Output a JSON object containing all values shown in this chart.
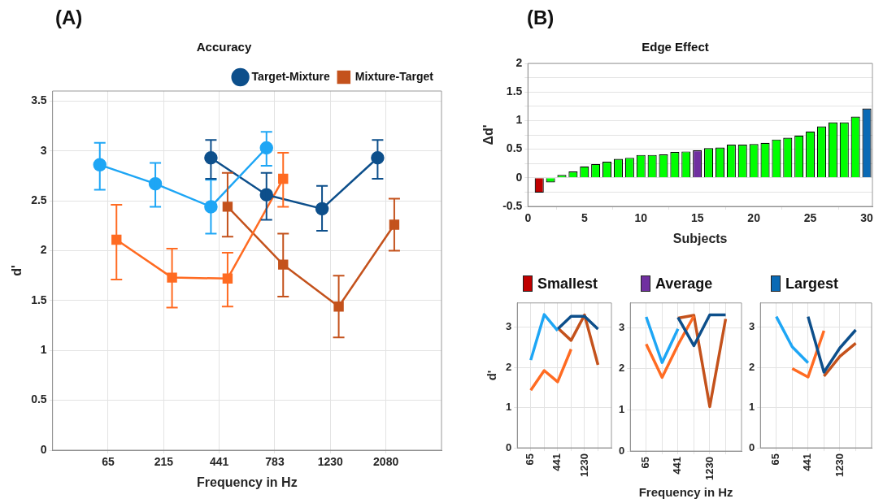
{
  "chart_data": [
    {
      "type": "line",
      "title": "Accuracy",
      "xlabel": "Frequency in Hz",
      "ylabel": "d'",
      "annotations": [
        "(A)"
      ],
      "categories": [
        "65",
        "215",
        "441",
        "783",
        "1230",
        "2080"
      ],
      "ylim": [
        0,
        3.6
      ],
      "yticks": [
        0,
        0.5,
        1,
        1.5,
        2,
        2.5,
        3,
        3.5
      ],
      "grid": true,
      "legend": "top right",
      "series": [
        {
          "color": "#1ea6f5",
          "marker": "circle",
          "values": [
            2.86,
            2.67,
            2.44,
            3.03,
            null,
            null
          ],
          "errors": [
            [
              2.61,
              3.08
            ],
            [
              2.44,
              2.88
            ],
            [
              2.17,
              2.71
            ],
            [
              2.85,
              3.19
            ],
            null,
            null
          ]
        },
        {
          "name": "Target-Mixture",
          "color": "#0d4f8b",
          "marker": "circle",
          "values": [
            null,
            null,
            2.93,
            2.56,
            2.42,
            2.93
          ],
          "errors": [
            null,
            null,
            [
              2.72,
              3.11
            ],
            [
              2.31,
              2.78
            ],
            [
              2.2,
              2.65
            ],
            [
              2.72,
              3.11
            ]
          ]
        },
        {
          "color": "#ff6b22",
          "marker": "square",
          "values": [
            2.11,
            1.73,
            1.72,
            2.72,
            null,
            null
          ],
          "errors": [
            [
              1.71,
              2.46
            ],
            [
              1.43,
              2.02
            ],
            [
              1.44,
              1.98
            ],
            [
              2.44,
              2.98
            ],
            null,
            null
          ]
        },
        {
          "name": "Mixture-Target",
          "color": "#c4521c",
          "marker": "square",
          "values": [
            null,
            null,
            2.44,
            1.86,
            1.44,
            2.26
          ],
          "errors": [
            null,
            null,
            [
              2.14,
              2.78
            ],
            [
              1.54,
              2.17
            ],
            [
              1.13,
              1.75
            ],
            [
              2.0,
              2.52
            ]
          ]
        }
      ]
    },
    {
      "type": "bar",
      "title": "Edge Effect",
      "xlabel": "Subjects",
      "ylabel": "Δd'",
      "annotations": [
        "(B)"
      ],
      "x": [
        1,
        2,
        3,
        4,
        5,
        6,
        7,
        8,
        9,
        10,
        11,
        12,
        13,
        14,
        15,
        16,
        17,
        18,
        19,
        20,
        21,
        22,
        23,
        24,
        25,
        26,
        27,
        28,
        29,
        30
      ],
      "values": [
        -0.26,
        -0.08,
        0.05,
        0.11,
        0.2,
        0.24,
        0.28,
        0.33,
        0.35,
        0.4,
        0.4,
        0.41,
        0.45,
        0.46,
        0.48,
        0.52,
        0.53,
        0.58,
        0.58,
        0.59,
        0.61,
        0.67,
        0.7,
        0.74,
        0.81,
        0.9,
        0.97,
        0.97,
        1.07,
        1.21
      ],
      "colors": [
        "#c00000",
        "#00ff00",
        "#00ff00",
        "#00ff00",
        "#00ff00",
        "#00ff00",
        "#00ff00",
        "#00ff00",
        "#00ff00",
        "#00ff00",
        "#00ff00",
        "#00ff00",
        "#00ff00",
        "#00ff00",
        "#7030a0",
        "#00ff00",
        "#00ff00",
        "#00ff00",
        "#00ff00",
        "#00ff00",
        "#00ff00",
        "#00ff00",
        "#00ff00",
        "#00ff00",
        "#00ff00",
        "#00ff00",
        "#00ff00",
        "#00ff00",
        "#00ff00",
        "#0a6ab5"
      ],
      "xlim": [
        0,
        30.5
      ],
      "xticks": [
        0,
        5,
        10,
        15,
        20,
        25,
        30
      ],
      "ylim": [
        -0.5,
        2
      ],
      "yticks": [
        -0.5,
        {
          "value": -0.25,
          "label": null
        },
        0,
        {
          "value": 0.25,
          "label": null
        },
        0.5,
        {
          "value": 0.75,
          "label": null
        },
        1,
        {
          "value": 1.25,
          "label": null
        },
        1.5,
        {
          "value": 1.75,
          "label": null
        },
        2
      ],
      "grid": "y"
    },
    {
      "type": "line",
      "title": "Smallest",
      "ylabel": "d'",
      "categories": [
        "65",
        null,
        "441",
        null,
        "1230",
        null
      ],
      "ylim": [
        0,
        3.6
      ],
      "yticks": [
        0,
        1,
        2,
        3
      ],
      "grid": true,
      "marker": "none",
      "series": [
        {
          "color": "#1ea6f5",
          "values": [
            2.18,
            3.31,
            2.91,
            null,
            null,
            null
          ]
        },
        {
          "color": "#0d4f8b",
          "values": [
            null,
            null,
            2.95,
            3.27,
            3.27,
            2.95
          ]
        },
        {
          "color": "#ff6b22",
          "values": [
            1.43,
            1.92,
            1.64,
            2.45,
            null,
            null
          ]
        },
        {
          "color": "#c4521c",
          "values": [
            null,
            null,
            2.98,
            2.67,
            3.3,
            2.06
          ]
        }
      ]
    },
    {
      "type": "line",
      "title": "Average",
      "xlabel": "Frequency in Hz",
      "categories": [
        "65",
        null,
        "441",
        null,
        "1230",
        null
      ],
      "ylim": [
        0,
        3.6
      ],
      "yticks": [
        0,
        1,
        2,
        3
      ],
      "grid": true,
      "marker": "none",
      "series": [
        {
          "color": "#1ea6f5",
          "values": [
            3.26,
            2.15,
            2.97,
            null,
            null,
            null
          ]
        },
        {
          "color": "#0d4f8b",
          "values": [
            null,
            null,
            3.25,
            2.56,
            3.31,
            3.31
          ]
        },
        {
          "color": "#ff6b22",
          "values": [
            2.6,
            1.79,
            2.58,
            3.28,
            null,
            null
          ]
        },
        {
          "color": "#c4521c",
          "values": [
            null,
            null,
            3.23,
            3.3,
            1.08,
            3.21
          ]
        }
      ]
    },
    {
      "type": "line",
      "title": "Largest",
      "categories": [
        "65",
        null,
        "441",
        null,
        "1230",
        null
      ],
      "ylim": [
        0,
        3.6
      ],
      "yticks": [
        0,
        1,
        2,
        3
      ],
      "grid": true,
      "marker": "none",
      "series": [
        {
          "color": "#1ea6f5",
          "values": [
            3.26,
            2.51,
            2.11,
            null,
            null,
            null
          ]
        },
        {
          "color": "#0d4f8b",
          "values": [
            null,
            null,
            3.26,
            1.88,
            2.48,
            2.93
          ]
        },
        {
          "color": "#ff6b22",
          "values": [
            null,
            1.97,
            1.76,
            2.91,
            null,
            null
          ]
        },
        {
          "color": "#c4521c",
          "values": [
            null,
            null,
            null,
            1.78,
            2.27,
            2.6
          ]
        }
      ]
    }
  ]
}
